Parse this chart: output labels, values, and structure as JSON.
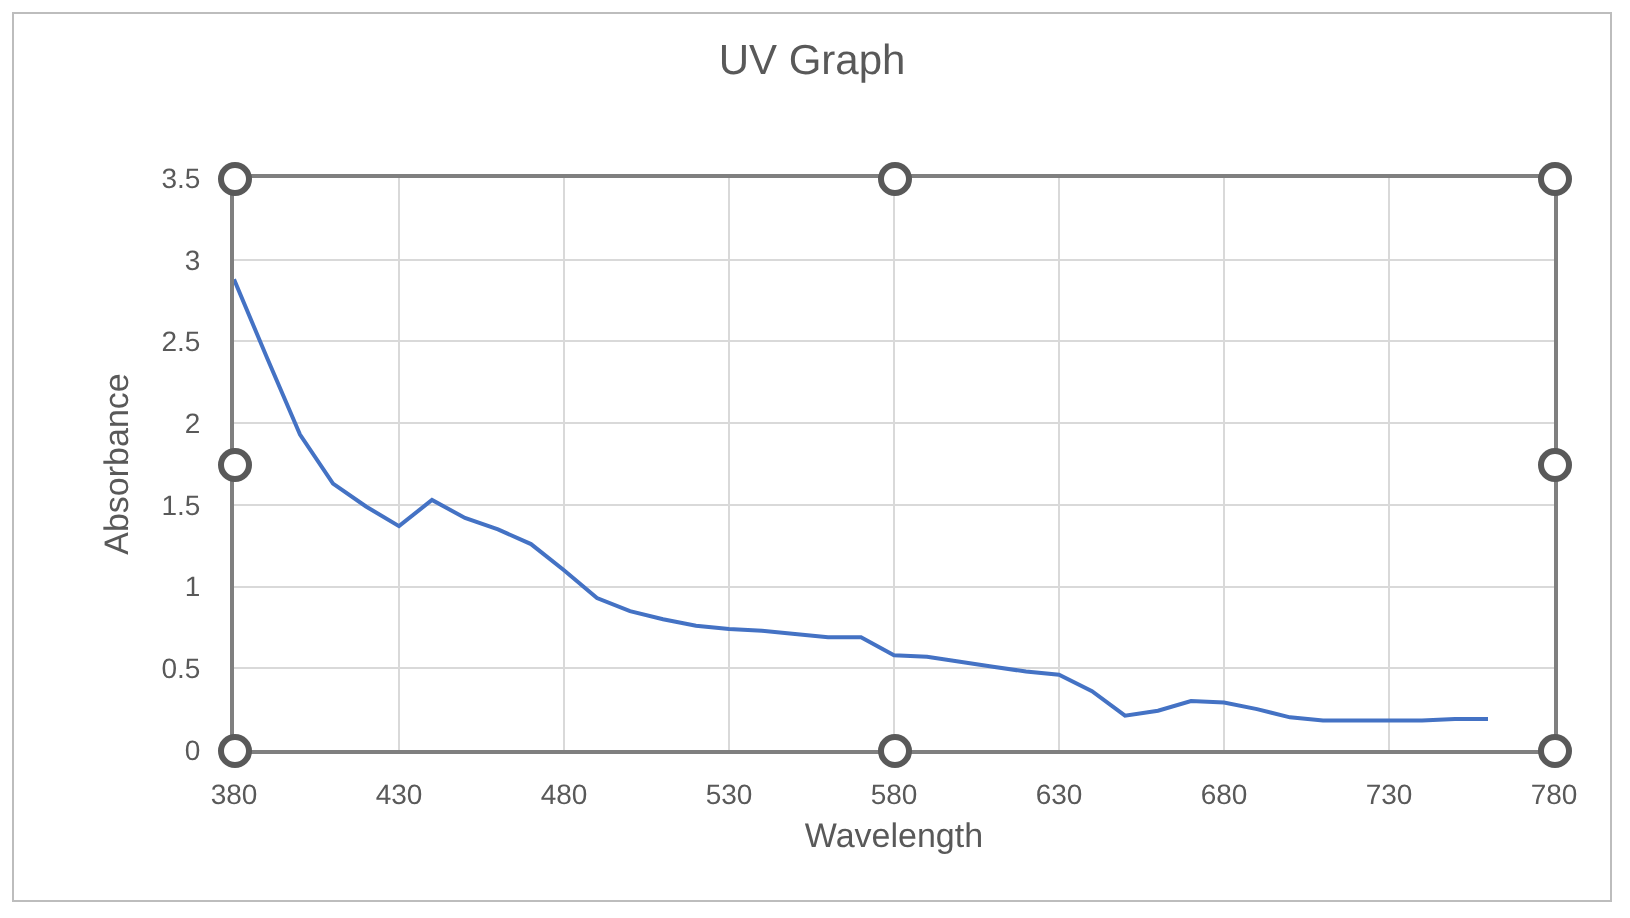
{
  "chart_data": {
    "type": "line",
    "title": "UV Graph",
    "xlabel": "Wavelength",
    "ylabel": "Absorbance",
    "x": [
      380,
      390,
      400,
      410,
      420,
      430,
      440,
      450,
      460,
      470,
      480,
      490,
      500,
      510,
      520,
      530,
      540,
      550,
      560,
      570,
      580,
      590,
      600,
      610,
      620,
      630,
      640,
      650,
      660,
      670,
      680,
      690,
      700,
      710,
      720,
      730,
      740,
      750,
      760
    ],
    "series": [
      {
        "color": "#4472c4",
        "values": [
          2.88,
          2.4,
          1.93,
          1.63,
          1.49,
          1.37,
          1.53,
          1.42,
          1.35,
          1.26,
          1.1,
          0.93,
          0.85,
          0.8,
          0.76,
          0.74,
          0.73,
          0.71,
          0.69,
          0.69,
          0.58,
          0.57,
          0.54,
          0.51,
          0.48,
          0.46,
          0.36,
          0.21,
          0.24,
          0.3,
          0.29,
          0.25,
          0.2,
          0.18,
          0.18,
          0.18,
          0.18,
          0.19,
          0.19
        ]
      }
    ],
    "xlim": [
      380,
      780
    ],
    "xticks": [
      380,
      430,
      480,
      530,
      580,
      630,
      680,
      730,
      780
    ],
    "ylim": [
      0,
      3.5
    ],
    "yticks": [
      0,
      0.5,
      1,
      1.5,
      2,
      2.5,
      3,
      3.5
    ],
    "grid": true,
    "legend": false,
    "marker": "none",
    "line_style": "solid"
  }
}
